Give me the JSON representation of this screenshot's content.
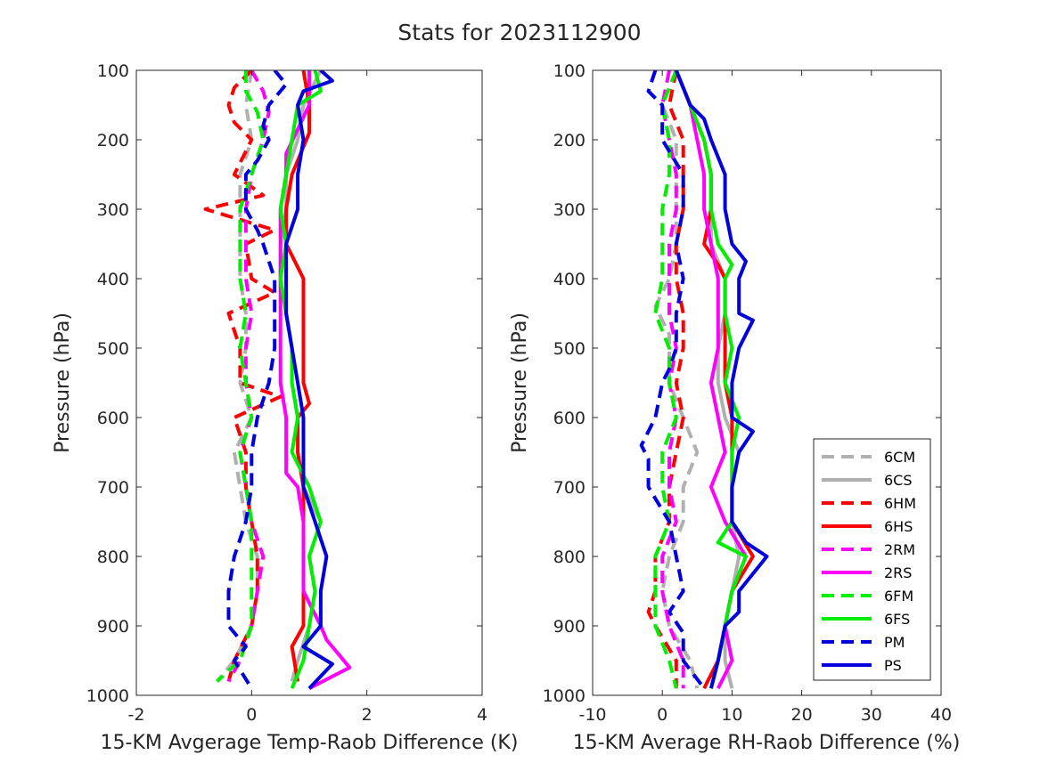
{
  "figure": {
    "title": "Stats for 2023112900"
  },
  "chart_data": [
    {
      "type": "line",
      "xlabel": "15-KM Avgerage Temp-Raob Difference (K)",
      "ylabel": "Pressure (hPa)",
      "xlim": [
        -2,
        4
      ],
      "ylim": [
        100,
        1000
      ],
      "y_reversed": true,
      "xticks": [
        "-2",
        "0",
        "2",
        "4"
      ],
      "yticks": [
        "100",
        "200",
        "300",
        "400",
        "500",
        "600",
        "700",
        "800",
        "900",
        "1000"
      ],
      "grid": false,
      "legend": "none",
      "series": [
        {
          "name": "6CM",
          "color": "#b0b0b0",
          "dash": true,
          "y": [
            100,
            150,
            200,
            250,
            300,
            350,
            400,
            450,
            500,
            550,
            600,
            650,
            700,
            750,
            800,
            850,
            900,
            950,
            980
          ],
          "x": [
            0.0,
            -0.1,
            0.0,
            -0.2,
            -0.2,
            -0.2,
            -0.2,
            -0.1,
            -0.1,
            -0.2,
            0.0,
            -0.3,
            -0.2,
            -0.1,
            0.1,
            0.1,
            0.0,
            -0.3,
            -0.6
          ]
        },
        {
          "name": "6CS",
          "color": "#b0b0b0",
          "dash": false,
          "y": [
            100,
            150,
            200,
            250,
            300,
            350,
            400,
            450,
            500,
            550,
            600,
            650,
            700,
            750,
            800,
            850,
            900,
            950,
            980
          ],
          "x": [
            1.2,
            0.9,
            0.8,
            0.6,
            0.6,
            0.5,
            0.5,
            0.6,
            0.7,
            0.7,
            0.8,
            0.8,
            0.9,
            1.2,
            1.0,
            1.1,
            1.0,
            0.8,
            0.7
          ]
        },
        {
          "name": "6HM",
          "color": "#ff0000",
          "dash": true,
          "y": [
            100,
            125,
            150,
            175,
            200,
            250,
            280,
            300,
            330,
            350,
            400,
            420,
            450,
            500,
            550,
            570,
            600,
            650,
            700,
            750,
            800,
            850,
            900,
            950,
            980
          ],
          "x": [
            0.0,
            -0.3,
            -0.4,
            -0.3,
            0.0,
            -0.3,
            0.2,
            -0.8,
            0.4,
            -0.1,
            0.0,
            0.4,
            -0.4,
            -0.2,
            -0.2,
            0.5,
            -0.3,
            -0.1,
            -0.1,
            0.0,
            0.1,
            0.1,
            0.0,
            -0.3,
            -0.4
          ]
        },
        {
          "name": "6HS",
          "color": "#ff0000",
          "dash": false,
          "y": [
            100,
            150,
            190,
            250,
            300,
            350,
            400,
            450,
            500,
            550,
            580,
            600,
            650,
            700,
            750,
            800,
            850,
            900,
            930,
            980
          ],
          "x": [
            0.9,
            1.0,
            1.0,
            0.7,
            0.6,
            0.6,
            0.9,
            0.9,
            0.9,
            0.9,
            1.0,
            0.8,
            0.8,
            0.9,
            0.9,
            0.9,
            0.9,
            0.9,
            0.7,
            0.8
          ]
        },
        {
          "name": "2RM",
          "color": "#ff00ff",
          "dash": true,
          "y": [
            100,
            130,
            160,
            200,
            250,
            300,
            350,
            400,
            450,
            500,
            550,
            600,
            650,
            700,
            750,
            800,
            850,
            900,
            950,
            980
          ],
          "x": [
            0.0,
            0.2,
            0.3,
            0.2,
            0.0,
            -0.1,
            -0.1,
            -0.1,
            0.0,
            -0.1,
            -0.1,
            0.0,
            -0.2,
            -0.1,
            0.0,
            0.2,
            0.1,
            0.0,
            -0.2,
            -0.4
          ]
        },
        {
          "name": "2RS",
          "color": "#ff00ff",
          "dash": false,
          "y": [
            100,
            150,
            220,
            250,
            300,
            350,
            400,
            450,
            500,
            550,
            600,
            650,
            680,
            700,
            750,
            800,
            850,
            900,
            920,
            960,
            990
          ],
          "x": [
            1.0,
            1.0,
            0.6,
            0.6,
            0.5,
            0.5,
            0.5,
            0.5,
            0.5,
            0.5,
            0.6,
            0.6,
            0.6,
            0.8,
            0.9,
            0.9,
            0.9,
            1.2,
            1.3,
            1.7,
            1.0
          ]
        },
        {
          "name": "6FM",
          "color": "#00ee00",
          "dash": true,
          "y": [
            100,
            130,
            160,
            200,
            250,
            300,
            350,
            400,
            450,
            500,
            550,
            600,
            650,
            700,
            750,
            800,
            850,
            900,
            950,
            980
          ],
          "x": [
            -0.1,
            -0.1,
            0.1,
            0.2,
            0.0,
            -0.2,
            -0.2,
            -0.2,
            -0.1,
            -0.2,
            -0.1,
            0.0,
            -0.2,
            -0.1,
            0.0,
            0.0,
            0.0,
            0.0,
            -0.2,
            -0.6
          ]
        },
        {
          "name": "6FS",
          "color": "#00ee00",
          "dash": false,
          "y": [
            100,
            130,
            150,
            200,
            250,
            300,
            350,
            400,
            450,
            500,
            550,
            600,
            650,
            700,
            750,
            800,
            850,
            900,
            950,
            990
          ],
          "x": [
            1.1,
            1.2,
            0.8,
            0.7,
            0.6,
            0.5,
            0.6,
            0.5,
            0.6,
            0.7,
            0.7,
            0.8,
            0.7,
            1.0,
            1.2,
            1.0,
            1.1,
            1.0,
            0.9,
            0.7
          ]
        },
        {
          "name": "PM",
          "color": "#0000dd",
          "dash": true,
          "y": [
            100,
            120,
            150,
            180,
            200,
            230,
            250,
            300,
            330,
            350,
            400,
            450,
            500,
            550,
            600,
            650,
            700,
            750,
            800,
            850,
            900,
            930,
            950,
            990
          ],
          "x": [
            0.4,
            0.6,
            0.3,
            0.2,
            0.3,
            0.1,
            -0.1,
            -0.1,
            0.1,
            0.2,
            0.4,
            0.4,
            0.4,
            0.3,
            0.1,
            0.0,
            0.0,
            -0.1,
            -0.3,
            -0.4,
            -0.4,
            -0.1,
            -0.3,
            0.0
          ]
        },
        {
          "name": "PS",
          "color": "#0000dd",
          "dash": false,
          "y": [
            100,
            115,
            130,
            150,
            200,
            250,
            300,
            350,
            400,
            450,
            500,
            550,
            600,
            650,
            700,
            750,
            800,
            850,
            900,
            930,
            955,
            990
          ],
          "x": [
            1.2,
            1.4,
            0.9,
            0.8,
            0.9,
            0.8,
            0.8,
            0.6,
            0.6,
            0.6,
            0.7,
            0.8,
            0.9,
            0.9,
            0.9,
            1.1,
            1.3,
            1.2,
            1.2,
            0.9,
            1.4,
            1.0
          ]
        }
      ]
    },
    {
      "type": "line",
      "xlabel": "15-KM Average RH-Raob Difference (%)",
      "ylabel": "Pressure (hPa)",
      "xlim": [
        -10,
        40
      ],
      "ylim": [
        100,
        1000
      ],
      "y_reversed": true,
      "xticks": [
        "-10",
        "0",
        "10",
        "20",
        "30",
        "40"
      ],
      "yticks": [
        "100",
        "200",
        "300",
        "400",
        "500",
        "600",
        "700",
        "800",
        "900",
        "1000"
      ],
      "grid": false,
      "legend": "bottom-right",
      "series": [
        {
          "name": "6CM",
          "color": "#b0b0b0",
          "dash": true,
          "y": [
            100,
            150,
            200,
            250,
            300,
            350,
            400,
            440,
            480,
            500,
            550,
            600,
            650,
            700,
            750,
            800,
            850,
            900,
            950,
            990
          ],
          "x": [
            2.0,
            0.0,
            2.0,
            2.0,
            2.0,
            2.0,
            1.0,
            -1.0,
            1.0,
            1.0,
            1.0,
            3.0,
            5.0,
            3.0,
            3.0,
            1.0,
            0.0,
            1.0,
            4.0,
            5.0
          ]
        },
        {
          "name": "6CS",
          "color": "#b0b0b0",
          "dash": false,
          "y": [
            100,
            150,
            200,
            250,
            300,
            350,
            400,
            450,
            500,
            550,
            600,
            650,
            700,
            750,
            800,
            850,
            900,
            950,
            990
          ],
          "x": [
            2.0,
            4.0,
            6.0,
            7.0,
            7.0,
            7.0,
            9.0,
            9.0,
            8.0,
            8.0,
            9.0,
            11.0,
            10.0,
            10.0,
            11.0,
            10.0,
            9.0,
            9.0,
            10.0
          ]
        },
        {
          "name": "6HM",
          "color": "#ff0000",
          "dash": true,
          "y": [
            100,
            150,
            200,
            260,
            300,
            350,
            400,
            450,
            500,
            550,
            600,
            650,
            700,
            750,
            800,
            850,
            880,
            900,
            950,
            990
          ],
          "x": [
            2.0,
            1.0,
            3.0,
            3.0,
            3.0,
            2.0,
            2.0,
            3.0,
            3.0,
            2.0,
            3.0,
            2.0,
            1.0,
            1.0,
            -1.0,
            -1.0,
            -2.0,
            -1.0,
            2.0,
            2.0
          ]
        },
        {
          "name": "6HS",
          "color": "#ff0000",
          "dash": false,
          "y": [
            100,
            150,
            200,
            250,
            300,
            350,
            380,
            400,
            450,
            500,
            550,
            600,
            650,
            700,
            750,
            800,
            850,
            900,
            950,
            990
          ],
          "x": [
            2.0,
            4.0,
            6.0,
            7.0,
            7.0,
            6.0,
            8.0,
            9.0,
            9.0,
            9.0,
            9.0,
            10.0,
            10.0,
            10.0,
            10.0,
            13.0,
            10.0,
            9.0,
            8.0,
            6.0
          ]
        },
        {
          "name": "2RM",
          "color": "#ff00ff",
          "dash": true,
          "y": [
            100,
            150,
            200,
            250,
            300,
            350,
            400,
            450,
            500,
            550,
            600,
            650,
            700,
            750,
            800,
            850,
            900,
            950,
            990
          ],
          "x": [
            1.0,
            0.0,
            1.0,
            2.0,
            2.0,
            1.0,
            1.0,
            1.0,
            2.0,
            1.0,
            2.0,
            1.0,
            1.0,
            2.0,
            0.0,
            0.0,
            1.0,
            3.0,
            3.0
          ]
        },
        {
          "name": "2RS",
          "color": "#ff00ff",
          "dash": false,
          "y": [
            100,
            150,
            200,
            250,
            300,
            350,
            400,
            450,
            500,
            550,
            600,
            650,
            700,
            750,
            800,
            850,
            900,
            950,
            990
          ],
          "x": [
            2.0,
            4.0,
            5.0,
            6.0,
            6.0,
            7.0,
            8.0,
            8.0,
            8.0,
            7.0,
            8.0,
            9.0,
            7.0,
            9.0,
            12.0,
            10.0,
            9.0,
            10.0,
            8.0
          ]
        },
        {
          "name": "6FM",
          "color": "#00ee00",
          "dash": true,
          "y": [
            100,
            150,
            200,
            250,
            300,
            350,
            400,
            450,
            500,
            550,
            600,
            650,
            700,
            750,
            800,
            850,
            900,
            950,
            990
          ],
          "x": [
            2.0,
            0.0,
            1.0,
            1.0,
            0.0,
            0.0,
            0.0,
            -1.0,
            1.0,
            1.0,
            2.0,
            0.0,
            0.0,
            1.0,
            -1.0,
            -1.0,
            -1.0,
            1.0,
            2.0
          ]
        },
        {
          "name": "6FS",
          "color": "#00ee00",
          "dash": false,
          "y": [
            100,
            150,
            200,
            250,
            300,
            350,
            380,
            400,
            450,
            500,
            550,
            600,
            650,
            700,
            750,
            780,
            800,
            850,
            900,
            950,
            990
          ],
          "x": [
            2.0,
            4.0,
            6.0,
            7.0,
            7.0,
            8.0,
            10.0,
            9.0,
            9.0,
            10.0,
            9.0,
            11.0,
            10.0,
            10.0,
            10.0,
            8.0,
            12.0,
            10.0,
            9.0,
            8.0,
            7.0
          ]
        },
        {
          "name": "PM",
          "color": "#0000dd",
          "dash": true,
          "y": [
            100,
            130,
            150,
            200,
            250,
            300,
            350,
            400,
            450,
            500,
            530,
            550,
            600,
            640,
            660,
            700,
            750,
            800,
            850,
            880,
            910,
            950,
            990
          ],
          "x": [
            -1.0,
            -2.0,
            0.0,
            0.0,
            3.0,
            3.0,
            2.0,
            3.0,
            2.0,
            2.0,
            1.0,
            0.0,
            -1.0,
            -3.0,
            -2.0,
            -2.0,
            1.0,
            2.0,
            3.0,
            1.0,
            3.0,
            3.0,
            6.0
          ]
        },
        {
          "name": "PS",
          "color": "#0000dd",
          "dash": false,
          "y": [
            100,
            150,
            170,
            200,
            250,
            300,
            350,
            375,
            400,
            450,
            460,
            500,
            550,
            600,
            620,
            650,
            700,
            750,
            780,
            800,
            850,
            880,
            900,
            950,
            990
          ],
          "x": [
            2.0,
            4.0,
            6.0,
            7.0,
            9.0,
            9.0,
            10.0,
            12.0,
            11.0,
            11.0,
            13.0,
            11.0,
            10.0,
            10.0,
            13.0,
            11.0,
            10.0,
            10.0,
            12.0,
            15.0,
            11.0,
            11.0,
            9.0,
            8.0,
            7.0
          ]
        }
      ]
    }
  ]
}
